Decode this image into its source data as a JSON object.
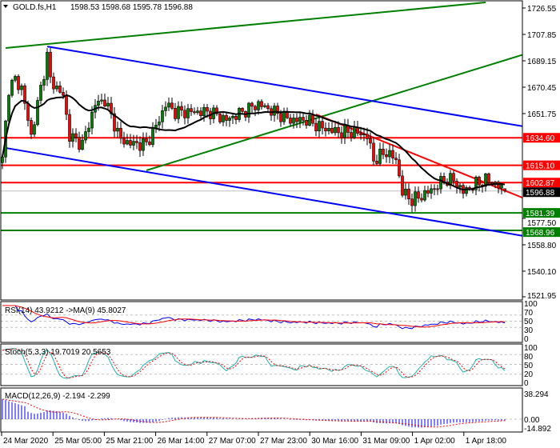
{
  "header": {
    "symbol": "GOLD.fs,H1",
    "ohlc": "1598.53 1598.68 1595.78 1596.88"
  },
  "chart_data": {
    "type": "candlestick",
    "symbol": "GOLD.fs",
    "timeframe": "H1",
    "open": 1598.53,
    "high": 1598.68,
    "low": 1595.78,
    "close": 1596.88,
    "ylim": [
      1521.95,
      1726.55
    ],
    "price_ticks": [
      "1726.55",
      "1707.85",
      "1689.15",
      "1670.45",
      "1651.75",
      "1577.50",
      "1558.80",
      "1540.10",
      "1521.95"
    ],
    "time_ticks": [
      "24 Mar 2020",
      "25 Mar 05:00",
      "25 Mar 21:00",
      "26 Mar 14:00",
      "27 Mar 07:00",
      "27 Mar 23:00",
      "30 Mar 16:00",
      "31 Mar 09:00",
      "1 Apr 02:00",
      "1 Apr 18:00"
    ],
    "close_path": [
      [
        0,
        1618.9
      ],
      [
        2,
        1669.9
      ],
      [
        4,
        1675.6
      ],
      [
        6,
        1669.9
      ],
      [
        9,
        1635.9
      ],
      [
        11,
        1658.5
      ],
      [
        14,
        1692.5
      ],
      [
        15,
        1675.6
      ],
      [
        19,
        1664.2
      ],
      [
        21,
        1635.9
      ],
      [
        25,
        1630.2
      ],
      [
        29,
        1658.5
      ],
      [
        32,
        1661.3
      ],
      [
        37,
        1633.0
      ],
      [
        41,
        1630.2
      ],
      [
        45,
        1630.2
      ],
      [
        49,
        1647.2
      ],
      [
        51,
        1658.5
      ],
      [
        54,
        1652.9
      ],
      [
        59,
        1652.9
      ],
      [
        65,
        1652.9
      ],
      [
        70,
        1647.2
      ],
      [
        75,
        1652.9
      ],
      [
        80,
        1658.5
      ],
      [
        85,
        1652.9
      ],
      [
        90,
        1647.2
      ],
      [
        95,
        1647.2
      ],
      [
        100,
        1641.5
      ],
      [
        105,
        1638.7
      ],
      [
        110,
        1638.7
      ],
      [
        114,
        1635.9
      ],
      [
        116,
        1618.9
      ],
      [
        120,
        1624.6
      ],
      [
        123,
        1618.9
      ],
      [
        125,
        1596.2
      ],
      [
        128,
        1590.5
      ],
      [
        131,
        1593.4
      ],
      [
        135,
        1599.0
      ],
      [
        138,
        1604.7
      ],
      [
        141,
        1604.7
      ],
      [
        144,
        1596.2
      ],
      [
        148,
        1601.9
      ],
      [
        151,
        1604.7
      ],
      [
        154,
        1601.9
      ],
      [
        157,
        1596.9
      ]
    ],
    "moving_average_period": 20,
    "levels": [
      {
        "price": 1634.6,
        "label": "1634.60",
        "color": "#ff0000"
      },
      {
        "price": 1615.1,
        "label": "1615.10",
        "color": "#ff0000"
      },
      {
        "price": 1602.87,
        "label": "1602.87",
        "color": "#ff0000"
      },
      {
        "price": 1581.39,
        "label": "1581.39",
        "color": "#008000"
      },
      {
        "price": 1568.96,
        "label": "1568.96",
        "color": "#008000"
      }
    ],
    "current_price": {
      "price": 1596.88,
      "label": "1596.88",
      "color": "#000000"
    },
    "trendlines": [
      {
        "color": "#008000",
        "from": [
          1,
          1698.2
        ],
        "to": [
          151,
          1730.5
        ]
      },
      {
        "color": "#008000",
        "from": [
          45,
          1611.5
        ],
        "to": [
          163,
          1693.7
        ]
      },
      {
        "color": "#0000ff",
        "from": [
          14,
          1699.3
        ],
        "to": [
          163,
          1642.6
        ]
      },
      {
        "color": "#0000ff",
        "from": [
          1,
          1627.4
        ],
        "to": [
          163,
          1565.0
        ]
      },
      {
        "color": "#ff0000",
        "from": [
          98,
          1651.2
        ],
        "to": [
          163,
          1591.7
        ]
      }
    ],
    "indicators": {
      "rsi": {
        "label": "RSI(14) 43.9212  ->MA(9) 45.8027",
        "ticks": [
          "100",
          "70",
          "50",
          "30",
          "0"
        ]
      },
      "stoch": {
        "label": "Stoch(5,3,3) 19.7019 20.5653",
        "ticks": [
          "100",
          "80",
          "50",
          "20",
          "0"
        ]
      },
      "macd": {
        "label": "MACD(12,26,9) -2.194 -2.299",
        "ticks": [
          "38.294",
          "0.00",
          "-14.892"
        ]
      }
    },
    "colors": {
      "bull": "#008000",
      "bear": "#ff0000",
      "ma": "#000000",
      "rsi": "#0000ff",
      "rsi_ma": "#ff0000",
      "stoch_main": "#20b2aa",
      "stoch_signal": "#ff0000",
      "macd_hist": "#0000ff",
      "macd_signal": "#ff0000"
    }
  }
}
